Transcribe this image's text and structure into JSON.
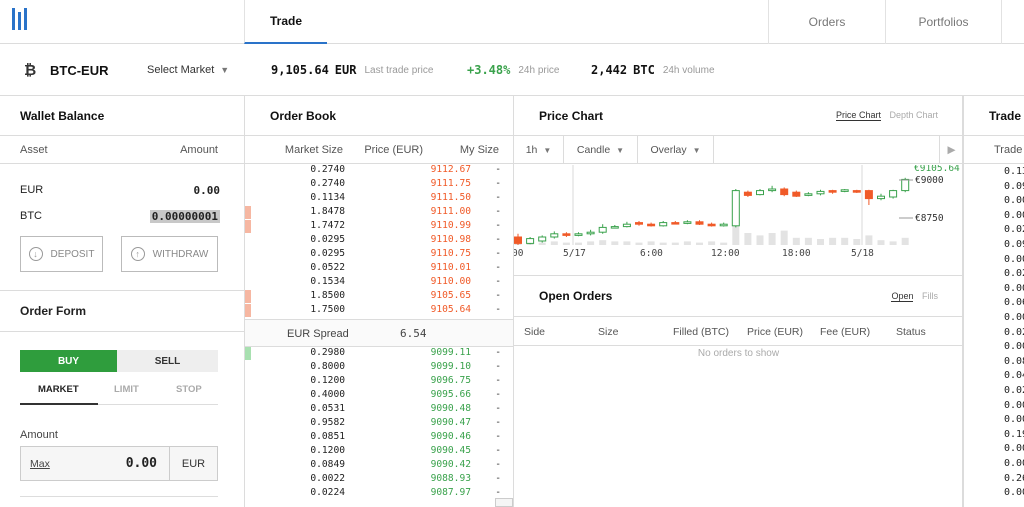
{
  "nav": {
    "tabs": [
      {
        "label": "Trade",
        "active": true
      },
      {
        "label": "Orders",
        "active": false
      },
      {
        "label": "Portfolios",
        "active": false
      }
    ]
  },
  "market": {
    "pair": "BTC-EUR",
    "select_label": "Select Market",
    "last_price": "9,105.64",
    "last_price_currency": "EUR",
    "last_price_label": "Last trade price",
    "change": "+3.48%",
    "change_label": "24h price",
    "volume": "2,442",
    "volume_currency": "BTC",
    "volume_label": "24h volume"
  },
  "wallet": {
    "title": "Wallet Balance",
    "col_asset": "Asset",
    "col_amount": "Amount",
    "rows": [
      {
        "asset": "EUR",
        "amount": "0.00"
      },
      {
        "asset": "BTC",
        "amount": "0.00000001"
      }
    ],
    "deposit_label": "DEPOSIT",
    "withdraw_label": "WITHDRAW"
  },
  "order_form": {
    "title": "Order Form",
    "buy_label": "BUY",
    "sell_label": "SELL",
    "types": [
      "MARKET",
      "LIMIT",
      "STOP"
    ],
    "amount_label": "Amount",
    "max_label": "Max",
    "amount_value": "0.00",
    "amount_currency": "EUR"
  },
  "order_book": {
    "title": "Order Book",
    "col_size": "Market Size",
    "col_price": "Price (EUR)",
    "col_my": "My Size",
    "asks": [
      {
        "size": "0.2740",
        "price": "9112.67",
        "my": "-"
      },
      {
        "size": "0.2740",
        "price": "9111.75",
        "my": "-"
      },
      {
        "size": "0.1134",
        "price": "9111.50",
        "my": "-"
      },
      {
        "size": "1.8478",
        "price": "9111.00",
        "my": "-"
      },
      {
        "size": "1.7472",
        "price": "9110.99",
        "my": "-"
      },
      {
        "size": "0.0295",
        "price": "9110.98",
        "my": "-"
      },
      {
        "size": "0.0295",
        "price": "9110.75",
        "my": "-"
      },
      {
        "size": "0.0522",
        "price": "9110.01",
        "my": "-"
      },
      {
        "size": "0.1534",
        "price": "9110.00",
        "my": "-"
      },
      {
        "size": "1.8500",
        "price": "9105.65",
        "my": "-"
      },
      {
        "size": "1.7500",
        "price": "9105.64",
        "my": "-"
      }
    ],
    "spread_label": "EUR Spread",
    "spread_value": "6.54",
    "bids": [
      {
        "size": "0.2980",
        "price": "9099.11",
        "my": "-"
      },
      {
        "size": "0.8000",
        "price": "9099.10",
        "my": "-"
      },
      {
        "size": "0.1200",
        "price": "9096.75",
        "my": "-"
      },
      {
        "size": "0.4000",
        "price": "9095.66",
        "my": "-"
      },
      {
        "size": "0.0531",
        "price": "9090.48",
        "my": "-"
      },
      {
        "size": "0.9582",
        "price": "9090.47",
        "my": "-"
      },
      {
        "size": "0.0851",
        "price": "9090.46",
        "my": "-"
      },
      {
        "size": "0.1200",
        "price": "9090.45",
        "my": "-"
      },
      {
        "size": "0.0849",
        "price": "9090.42",
        "my": "-"
      },
      {
        "size": "0.0022",
        "price": "9088.93",
        "my": "-"
      },
      {
        "size": "0.0224",
        "price": "9087.97",
        "my": "-"
      }
    ]
  },
  "price_chart": {
    "title": "Price Chart",
    "tab_price": "Price Chart",
    "tab_depth": "Depth Chart",
    "interval": "1h",
    "style": "Candle",
    "overlay": "Overlay",
    "current_label": "€9105.64",
    "level_high": "€9000",
    "level_low": "€8750",
    "x_labels": [
      "5/17",
      "6:00",
      "12:00",
      "18:00",
      "5/18"
    ],
    "x_first_partial": "00"
  },
  "chart_data": {
    "type": "candlestick",
    "ylim": [
      8650,
      9150
    ],
    "candles": [
      {
        "o": 8700,
        "c": 8660,
        "h": 8720,
        "l": 8650
      },
      {
        "o": 8660,
        "c": 8690,
        "h": 8700,
        "l": 8655
      },
      {
        "o": 8675,
        "c": 8700,
        "h": 8710,
        "l": 8665
      },
      {
        "o": 8700,
        "c": 8720,
        "h": 8735,
        "l": 8690
      },
      {
        "o": 8720,
        "c": 8710,
        "h": 8730,
        "l": 8700
      },
      {
        "o": 8710,
        "c": 8720,
        "h": 8730,
        "l": 8705
      },
      {
        "o": 8720,
        "c": 8730,
        "h": 8745,
        "l": 8710
      },
      {
        "o": 8730,
        "c": 8760,
        "h": 8780,
        "l": 8720
      },
      {
        "o": 8760,
        "c": 8765,
        "h": 8775,
        "l": 8755
      },
      {
        "o": 8765,
        "c": 8780,
        "h": 8795,
        "l": 8760
      },
      {
        "o": 8790,
        "c": 8780,
        "h": 8800,
        "l": 8770
      },
      {
        "o": 8780,
        "c": 8770,
        "h": 8790,
        "l": 8765
      },
      {
        "o": 8770,
        "c": 8790,
        "h": 8800,
        "l": 8765
      },
      {
        "o": 8790,
        "c": 8785,
        "h": 8800,
        "l": 8780
      },
      {
        "o": 8785,
        "c": 8795,
        "h": 8805,
        "l": 8780
      },
      {
        "o": 8795,
        "c": 8780,
        "h": 8805,
        "l": 8775
      },
      {
        "o": 8780,
        "c": 8770,
        "h": 8790,
        "l": 8765
      },
      {
        "o": 8770,
        "c": 8780,
        "h": 8790,
        "l": 8765
      },
      {
        "o": 8770,
        "c": 8990,
        "h": 9000,
        "l": 8760
      },
      {
        "o": 8980,
        "c": 8960,
        "h": 8990,
        "l": 8950
      },
      {
        "o": 8965,
        "c": 8990,
        "h": 9000,
        "l": 8960
      },
      {
        "o": 8990,
        "c": 9000,
        "h": 9020,
        "l": 8980
      },
      {
        "o": 9000,
        "c": 8965,
        "h": 9010,
        "l": 8955
      },
      {
        "o": 8980,
        "c": 8955,
        "h": 8990,
        "l": 8950
      },
      {
        "o": 8960,
        "c": 8970,
        "h": 8980,
        "l": 8955
      },
      {
        "o": 8970,
        "c": 8985,
        "h": 8995,
        "l": 8960
      },
      {
        "o": 8990,
        "c": 8980,
        "h": 8995,
        "l": 8970
      },
      {
        "o": 8985,
        "c": 8995,
        "h": 9000,
        "l": 8980
      },
      {
        "o": 8990,
        "c": 8980,
        "h": 8995,
        "l": 8975
      },
      {
        "o": 8990,
        "c": 8940,
        "h": 8995,
        "l": 8900
      },
      {
        "o": 8940,
        "c": 8955,
        "h": 8970,
        "l": 8930
      },
      {
        "o": 8950,
        "c": 8990,
        "h": 8995,
        "l": 8940
      },
      {
        "o": 8990,
        "c": 9060,
        "h": 9070,
        "l": 8980
      }
    ],
    "volumes": [
      0.1,
      0.15,
      0.1,
      0.15,
      0.1,
      0.1,
      0.15,
      0.2,
      0.15,
      0.15,
      0.1,
      0.15,
      0.1,
      0.1,
      0.15,
      0.1,
      0.15,
      0.1,
      0.9,
      0.5,
      0.4,
      0.5,
      0.6,
      0.3,
      0.3,
      0.25,
      0.3,
      0.3,
      0.25,
      0.4,
      0.2,
      0.15,
      0.3
    ]
  },
  "open_orders": {
    "title": "Open Orders",
    "tab_open": "Open",
    "tab_fills": "Fills",
    "cols": [
      "Side",
      "Size",
      "Filled (BTC)",
      "Price (EUR)",
      "Fee (EUR)",
      "Status"
    ],
    "empty": "No orders to show"
  },
  "trade_history": {
    "title": "Trade I",
    "col": "Trade S",
    "values": [
      "0.13",
      "0.09",
      "0.00",
      "0.00",
      "0.02",
      "0.09",
      "0.00",
      "0.02",
      "0.00",
      "0.06",
      "0.00",
      "0.02",
      "0.00",
      "0.08",
      "0.04",
      "0.02",
      "0.00",
      "0.00",
      "0.19",
      "0.00",
      "0.00",
      "0.26",
      "0.00"
    ]
  },
  "colors": {
    "accent": "#2a73c9",
    "buy": "#3aa24c",
    "sell": "#f05a28"
  }
}
